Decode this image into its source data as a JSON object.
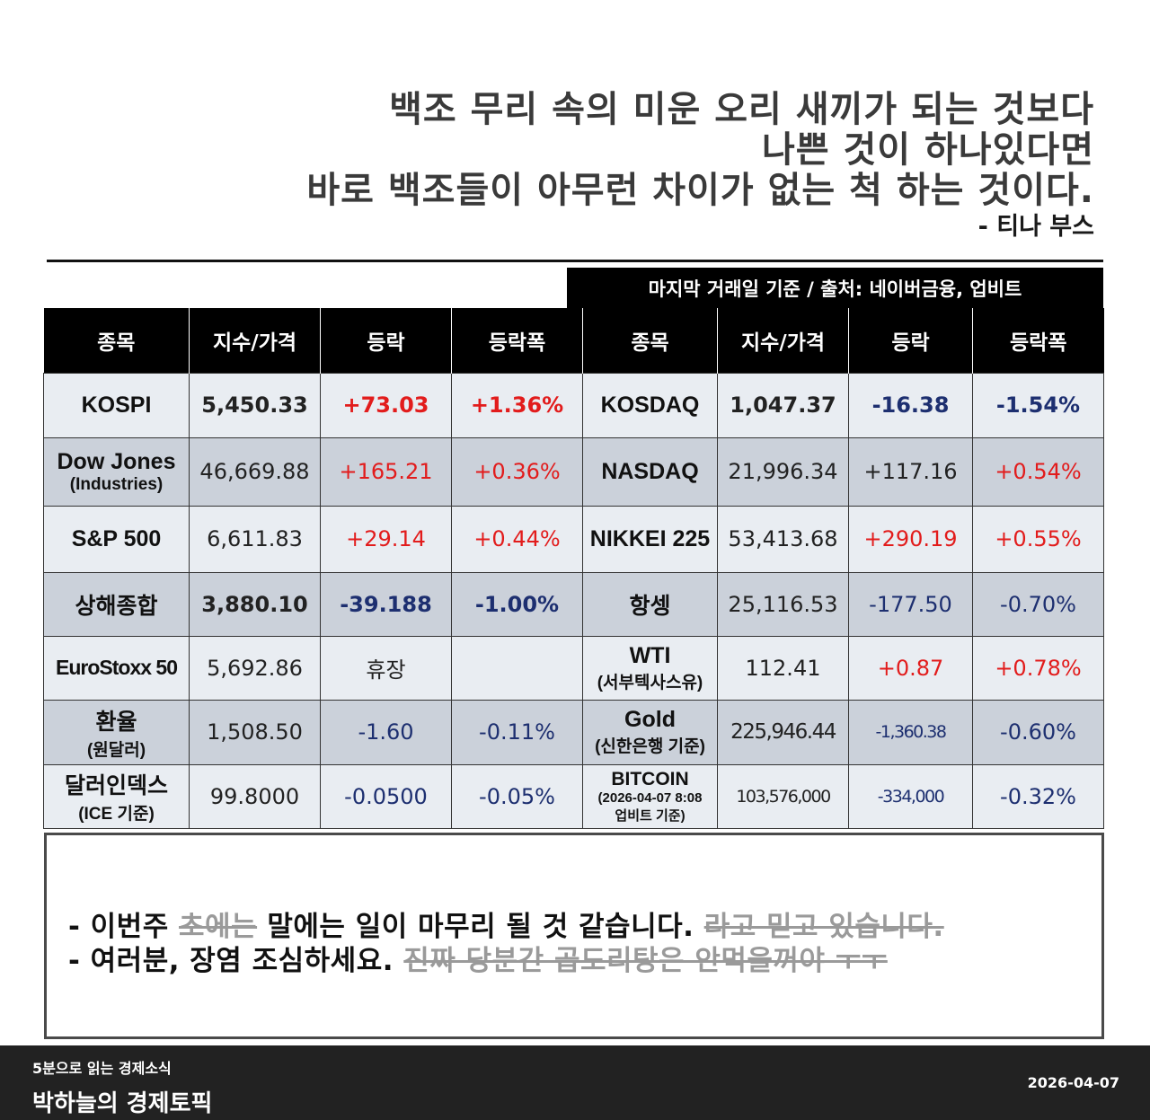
{
  "quote": {
    "lines": [
      "백조 무리 속의 미운 오리 새끼가 되는 것보다",
      "나쁜 것이 하나있다면",
      "바로 백조들이 아무런 차이가 없는 척 하는 것이다."
    ],
    "author": "- 티나 부스"
  },
  "source_label": "마지막 거래일 기준 / 출처: 네이버금융, 업비트",
  "table": {
    "headers": [
      "종목",
      "지수/가격",
      "등락",
      "등락폭",
      "종목",
      "지수/가격",
      "등락",
      "등락폭"
    ],
    "rows": [
      {
        "left": {
          "name": "KOSPI",
          "sub": "",
          "value": "5,450.33",
          "change": "+73.03",
          "pct": "+1.36%"
        },
        "right": {
          "name": "KOSDAQ",
          "sub": "",
          "value": "1,047.37",
          "change": "-16.38",
          "pct": "-1.54%"
        }
      },
      {
        "left": {
          "name": "Dow Jones",
          "sub": "(Industries)",
          "value": "46,669.88",
          "change": "+165.21",
          "pct": "+0.36%"
        },
        "right": {
          "name": "NASDAQ",
          "sub": "",
          "value": "21,996.34",
          "change": "+117.16",
          "pct": "+0.54%"
        }
      },
      {
        "left": {
          "name": "S&P 500",
          "sub": "",
          "value": "6,611.83",
          "change": "+29.14",
          "pct": "+0.44%"
        },
        "right": {
          "name": "NIKKEI 225",
          "sub": "",
          "value": "53,413.68",
          "change": "+290.19",
          "pct": "+0.55%"
        }
      },
      {
        "left": {
          "name": "상해종합",
          "sub": "",
          "value": "3,880.10",
          "change": "-39.188",
          "pct": "-1.00%"
        },
        "right": {
          "name": "항셍",
          "sub": "",
          "value": "25,116.53",
          "change": "-177.50",
          "pct": "-0.70%"
        }
      },
      {
        "left": {
          "name": "EuroStoxx 50",
          "sub": "",
          "value": "5,692.86",
          "change": "휴장",
          "pct": ""
        },
        "right": {
          "name": "WTI",
          "sub": "(서부텍사스유)",
          "value": "112.41",
          "change": "+0.87",
          "pct": "+0.78%"
        }
      },
      {
        "left": {
          "name": "환율",
          "sub": "(원달러)",
          "value": "1,508.50",
          "change": "-1.60",
          "pct": "-0.11%"
        },
        "right": {
          "name": "Gold",
          "sub": "(신한은행 기준)",
          "value": "225,946.44",
          "change": "-1,360.38",
          "pct": "-0.60%"
        }
      },
      {
        "left": {
          "name": "달러인덱스",
          "sub": "(ICE 기준)",
          "value": "99.8000",
          "change": "-0.0500",
          "pct": "-0.05%"
        },
        "right": {
          "name": "BITCOIN",
          "sub": "(2026-04-07 8:08",
          "sub2": "업비트 기준)",
          "value": "103,576,000",
          "change": "-334,000",
          "pct": "-0.32%"
        }
      }
    ]
  },
  "notes": {
    "line1": {
      "prefix": "- 이번주 ",
      "struck1": "초에는",
      "middle": " 말에는 일이 마무리 될 것 같습니다. ",
      "struck2": "라고 믿고 있습니다."
    },
    "line2": {
      "prefix": "- 여러분, 장염 조심하세요. ",
      "struck": "진짜 당분간 곱도리탕은 안먹을꺼야 ㅜㅜ"
    }
  },
  "footer": {
    "series": "5분으로 읽는 경제소식",
    "brand": "박하늘의 경제토픽",
    "date": "2026-04-07"
  },
  "colors": {
    "up": "#e21c1c",
    "down": "#1d2f70",
    "header_bg": "#000000",
    "row_light": "#e9edf2",
    "row_dark": "#cbd1da",
    "footer_bg": "#222222"
  }
}
